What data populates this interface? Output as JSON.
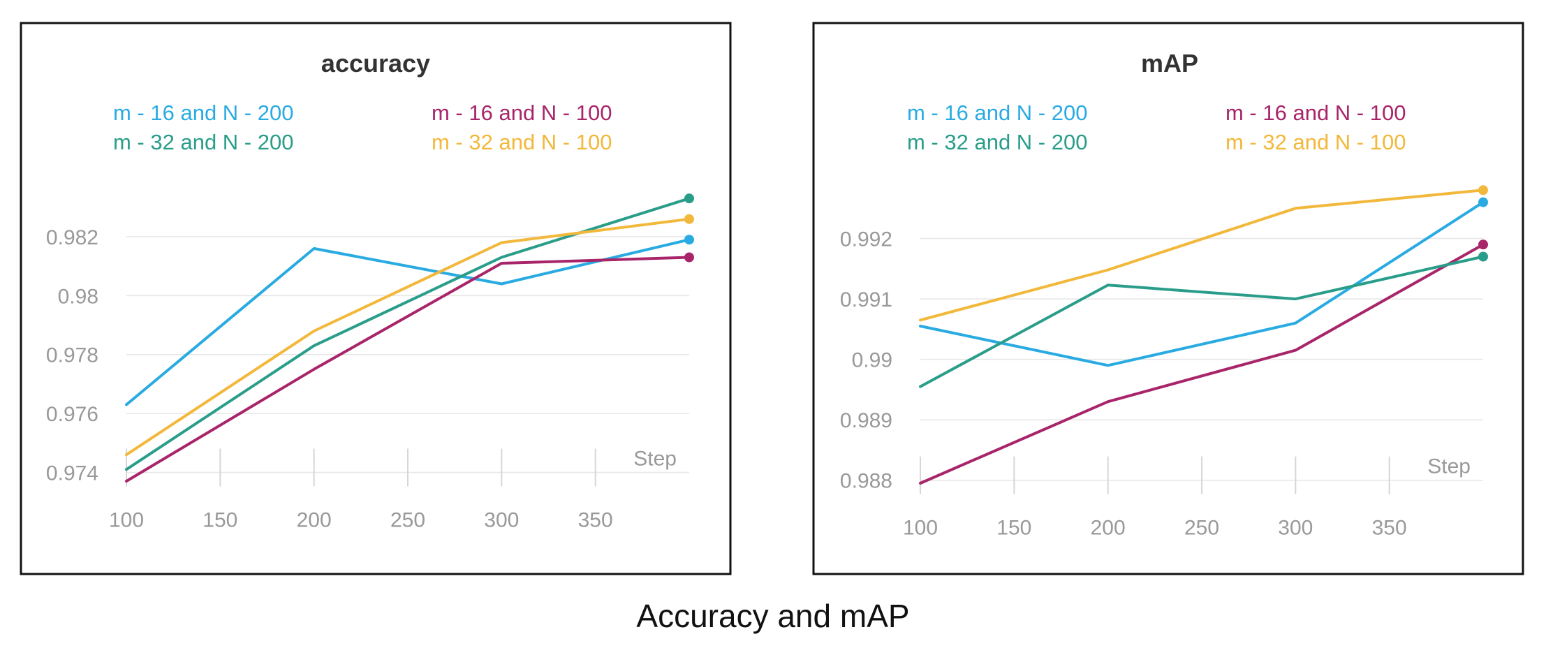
{
  "caption": "Accuracy and mAP",
  "chart_data": [
    {
      "type": "line",
      "title": "accuracy",
      "xlabel": "Step",
      "ylabel": "",
      "x": [
        100,
        200,
        300,
        400
      ],
      "xticks": [
        100,
        150,
        200,
        250,
        300,
        350
      ],
      "yticks": [
        0.974,
        0.976,
        0.978,
        0.98,
        0.982
      ],
      "ytick_labels": [
        "0.974",
        "0.976",
        "0.978",
        "0.98",
        "0.982"
      ],
      "ylim": [
        0.9733,
        0.9843
      ],
      "xlim": [
        100,
        400
      ],
      "grid": "horizontal",
      "legend": "top",
      "series": [
        {
          "name": "m - 16 and N - 200",
          "color": "#29abe2",
          "values": [
            0.9763,
            0.9816,
            0.9804,
            0.9819
          ]
        },
        {
          "name": "m - 16 and N - 100",
          "color": "#a8256a",
          "values": [
            0.9737,
            0.9775,
            0.9811,
            0.9813
          ]
        },
        {
          "name": "m - 32 and N - 200",
          "color": "#2a9d8a",
          "values": [
            0.9741,
            0.9783,
            0.9813,
            0.9833
          ]
        },
        {
          "name": "m - 32 and N - 100",
          "color": "#f2b83b",
          "values": [
            0.9746,
            0.9788,
            0.9818,
            0.9826
          ]
        }
      ]
    },
    {
      "type": "line",
      "title": "mAP",
      "xlabel": "Step",
      "ylabel": "",
      "x": [
        100,
        200,
        300,
        400
      ],
      "xticks": [
        100,
        150,
        200,
        250,
        300,
        350
      ],
      "yticks": [
        0.988,
        0.989,
        0.99,
        0.991,
        0.992
      ],
      "ytick_labels": [
        "0.988",
        "0.989",
        "0.99",
        "0.991",
        "0.992"
      ],
      "ylim": [
        0.98765,
        0.99315
      ],
      "xlim": [
        100,
        400
      ],
      "grid": "horizontal",
      "legend": "top",
      "series": [
        {
          "name": "m - 16 and N - 200",
          "color": "#29abe2",
          "values": [
            0.99055,
            0.9899,
            0.9906,
            0.9926
          ]
        },
        {
          "name": "m - 16 and N - 100",
          "color": "#a8256a",
          "values": [
            0.98795,
            0.9893,
            0.99015,
            0.9919
          ]
        },
        {
          "name": "m - 32 and N - 200",
          "color": "#2a9d8a",
          "values": [
            0.98955,
            0.99123,
            0.991,
            0.9917
          ]
        },
        {
          "name": "m - 32 and N - 100",
          "color": "#f2b83b",
          "values": [
            0.99065,
            0.99148,
            0.9925,
            0.9928
          ]
        }
      ]
    }
  ]
}
